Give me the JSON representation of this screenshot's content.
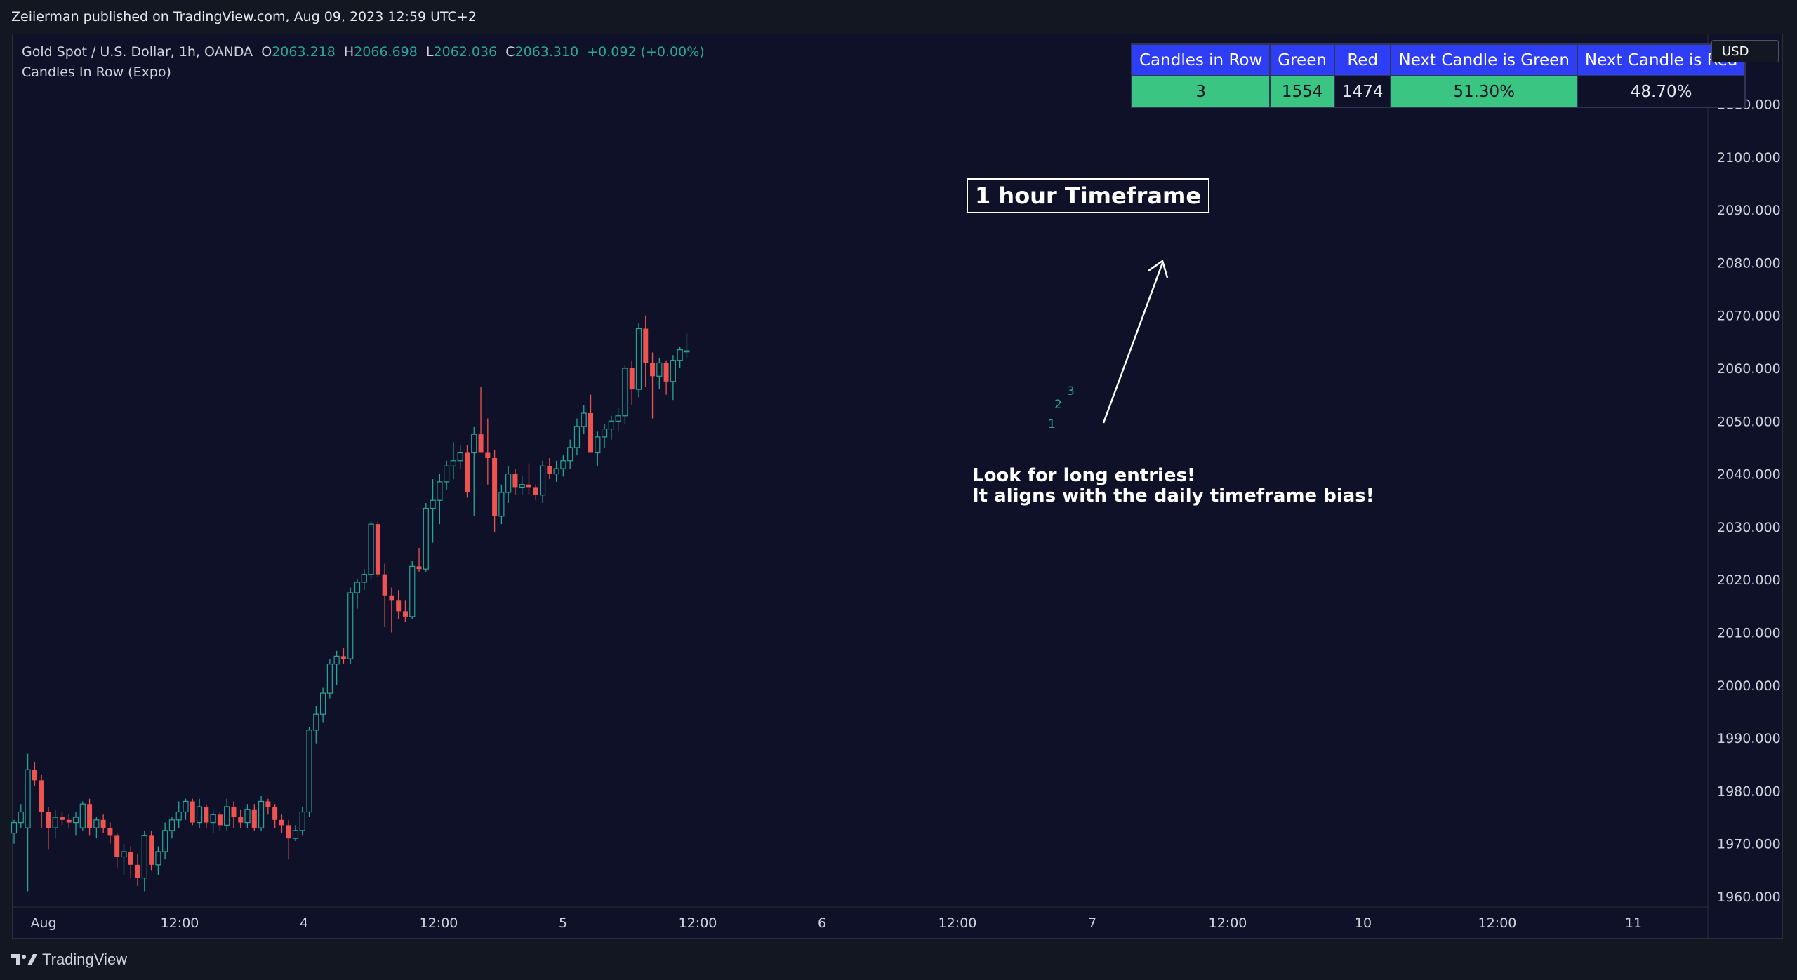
{
  "header": {
    "published": "Zeiierman published on TradingView.com, Aug 09, 2023 12:59 UTC+2"
  },
  "legend": {
    "symbol": "Gold Spot / U.S. Dollar, 1h, OANDA",
    "o_label": "O",
    "o_value": "2063.218",
    "h_label": "H",
    "h_value": "2066.698",
    "l_label": "L",
    "l_value": "2062.036",
    "c_label": "C",
    "c_value": "2063.310",
    "change": "+0.092 (+0.00%)",
    "indicator": "Candles In Row (Expo)"
  },
  "table": {
    "headers": [
      "Candles in Row",
      "Green",
      "Red",
      "Next Candle is Green",
      "Next Candle is Red"
    ],
    "values": [
      "3",
      "1554",
      "1474",
      "51.30%",
      "48.70%"
    ]
  },
  "annotations": {
    "timeframe_label": "1 hour Timeframe",
    "note_line1": "Look for long entries!",
    "note_line2": "It aligns with the daily timeframe bias!",
    "count_labels": [
      "1",
      "2",
      "3"
    ]
  },
  "price_axis": {
    "currency": "USD"
  },
  "footer": {
    "brand": "TradingView"
  },
  "colors": {
    "up": "#26a69a",
    "down": "#ef5350",
    "background": "#0f1129",
    "table_header": "#2e3ef6",
    "table_green": "#3ac583"
  },
  "chart_data": {
    "type": "candlestick",
    "symbol": "Gold Spot / U.S. Dollar",
    "interval": "1h",
    "ylim": [
      1956,
      2120
    ],
    "y_ticks": [
      "1960.000",
      "1970.000",
      "1980.000",
      "1990.000",
      "2000.000",
      "2010.000",
      "2020.000",
      "2030.000",
      "2040.000",
      "2050.000",
      "2060.000",
      "2070.000",
      "2080.000",
      "2090.000",
      "2100.000",
      "2110.000"
    ],
    "x_ticks": [
      "Aug",
      "12:00",
      "4",
      "12:00",
      "5",
      "12:00",
      "6",
      "12:00",
      "7",
      "12:00",
      "10",
      "12:00",
      "11"
    ],
    "candles": [
      [
        1972.0,
        1974.5,
        1970.0,
        1974.0
      ],
      [
        1974.0,
        1977.5,
        1973.0,
        1976.0
      ],
      [
        1973.0,
        1987.0,
        1961.0,
        1984.0
      ],
      [
        1984.0,
        1985.5,
        1981.0,
        1982.0
      ],
      [
        1982.0,
        1983.0,
        1973.0,
        1976.0
      ],
      [
        1976.0,
        1977.0,
        1969.0,
        1973.0
      ],
      [
        1973.0,
        1976.5,
        1971.0,
        1975.0
      ],
      [
        1975.0,
        1976.0,
        1973.5,
        1974.5
      ],
      [
        1974.5,
        1975.5,
        1973.0,
        1974.0
      ],
      [
        1974.0,
        1976.0,
        1971.5,
        1975.0
      ],
      [
        1973.0,
        1978.0,
        1972.5,
        1977.5
      ],
      [
        1977.5,
        1978.5,
        1971.5,
        1973.0
      ],
      [
        1973.0,
        1975.0,
        1971.0,
        1974.5
      ],
      [
        1974.5,
        1975.5,
        1972.0,
        1973.0
      ],
      [
        1973.0,
        1974.0,
        1970.0,
        1971.5
      ],
      [
        1971.5,
        1972.0,
        1965.5,
        1967.5
      ],
      [
        1967.5,
        1970.0,
        1964.0,
        1968.5
      ],
      [
        1968.5,
        1969.5,
        1963.5,
        1966.0
      ],
      [
        1966.0,
        1968.0,
        1962.0,
        1963.5
      ],
      [
        1963.5,
        1972.5,
        1961.0,
        1971.5
      ],
      [
        1971.5,
        1972.5,
        1965.0,
        1966.0
      ],
      [
        1966.0,
        1969.5,
        1964.0,
        1968.5
      ],
      [
        1968.5,
        1974.0,
        1967.0,
        1972.5
      ],
      [
        1972.5,
        1975.0,
        1971.0,
        1974.5
      ],
      [
        1974.5,
        1978.0,
        1973.0,
        1976.0
      ],
      [
        1976.0,
        1978.5,
        1974.5,
        1978.0
      ],
      [
        1978.0,
        1978.5,
        1973.5,
        1974.0
      ],
      [
        1974.0,
        1978.5,
        1973.0,
        1977.0
      ],
      [
        1977.0,
        1977.5,
        1973.0,
        1974.0
      ],
      [
        1974.0,
        1976.5,
        1972.0,
        1975.5
      ],
      [
        1975.5,
        1976.0,
        1972.5,
        1973.5
      ],
      [
        1973.5,
        1978.5,
        1972.5,
        1977.0
      ],
      [
        1977.0,
        1978.0,
        1973.0,
        1975.0
      ],
      [
        1975.0,
        1976.5,
        1973.0,
        1974.0
      ],
      [
        1974.0,
        1977.5,
        1973.0,
        1976.5
      ],
      [
        1976.5,
        1977.5,
        1972.5,
        1973.0
      ],
      [
        1973.0,
        1979.0,
        1972.5,
        1978.0
      ],
      [
        1978.0,
        1978.5,
        1975.5,
        1977.0
      ],
      [
        1977.0,
        1977.5,
        1973.0,
        1974.5
      ],
      [
        1974.5,
        1975.5,
        1972.0,
        1973.5
      ],
      [
        1973.5,
        1974.5,
        1967.0,
        1971.0
      ],
      [
        1971.0,
        1973.5,
        1970.5,
        1972.5
      ],
      [
        1972.5,
        1977.0,
        1971.5,
        1976.0
      ],
      [
        1976.0,
        1992.0,
        1975.0,
        1991.5
      ],
      [
        1991.5,
        1996.0,
        1989.0,
        1994.5
      ],
      [
        1994.5,
        1999.5,
        1993.0,
        1998.5
      ],
      [
        1998.5,
        2005.0,
        1997.5,
        2004.0
      ],
      [
        2004.0,
        2006.5,
        2000.0,
        2005.5
      ],
      [
        2005.5,
        2007.0,
        2004.0,
        2005.0
      ],
      [
        2005.0,
        2018.5,
        2004.0,
        2017.5
      ],
      [
        2017.5,
        2020.0,
        2014.5,
        2019.5
      ],
      [
        2019.5,
        2022.0,
        2018.0,
        2021.0
      ],
      [
        2021.0,
        2031.0,
        2020.0,
        2030.5
      ],
      [
        2030.5,
        2031.0,
        2020.5,
        2021.0
      ],
      [
        2021.0,
        2023.0,
        2011.0,
        2017.0
      ],
      [
        2017.0,
        2018.5,
        2010.0,
        2016.0
      ],
      [
        2016.0,
        2018.0,
        2012.5,
        2014.0
      ],
      [
        2014.0,
        2016.0,
        2012.0,
        2013.0
      ],
      [
        2013.0,
        2023.5,
        2012.5,
        2022.5
      ],
      [
        2022.5,
        2026.0,
        2021.5,
        2022.0
      ],
      [
        2022.0,
        2034.5,
        2021.5,
        2033.5
      ],
      [
        2033.5,
        2039.0,
        2027.0,
        2035.0
      ],
      [
        2035.0,
        2040.0,
        2030.5,
        2038.5
      ],
      [
        2038.5,
        2042.5,
        2037.0,
        2041.5
      ],
      [
        2041.5,
        2046.0,
        2039.0,
        2042.5
      ],
      [
        2042.5,
        2045.5,
        2041.0,
        2044.0
      ],
      [
        2044.0,
        2045.5,
        2035.5,
        2036.5
      ],
      [
        2044.0,
        2049.0,
        2032.0,
        2047.5
      ],
      [
        2047.5,
        2056.5,
        2045.0,
        2044.0
      ],
      [
        2044.0,
        2050.5,
        2038.0,
        2043.0
      ],
      [
        2043.0,
        2044.5,
        2029.0,
        2032.0
      ],
      [
        2032.0,
        2038.0,
        2030.5,
        2036.5
      ],
      [
        2036.5,
        2041.5,
        2034.5,
        2040.0
      ],
      [
        2040.0,
        2041.0,
        2036.0,
        2037.5
      ],
      [
        2037.5,
        2039.5,
        2036.0,
        2038.0
      ],
      [
        2038.0,
        2042.0,
        2036.0,
        2037.5
      ],
      [
        2037.5,
        2038.0,
        2035.0,
        2036.0
      ],
      [
        2036.0,
        2042.5,
        2034.5,
        2041.5
      ],
      [
        2041.5,
        2043.0,
        2039.0,
        2040.0
      ],
      [
        2040.0,
        2042.5,
        2038.5,
        2041.0
      ],
      [
        2041.0,
        2043.5,
        2039.5,
        2042.5
      ],
      [
        2042.5,
        2046.5,
        2041.0,
        2045.0
      ],
      [
        2045.0,
        2050.5,
        2043.5,
        2049.0
      ],
      [
        2049.0,
        2053.0,
        2047.5,
        2051.5
      ],
      [
        2051.5,
        2055.0,
        2045.0,
        2044.0
      ],
      [
        2044.0,
        2048.0,
        2041.5,
        2047.0
      ],
      [
        2047.0,
        2049.5,
        2045.0,
        2048.5
      ],
      [
        2048.5,
        2051.0,
        2046.5,
        2050.0
      ],
      [
        2050.0,
        2052.5,
        2048.0,
        2051.0
      ],
      [
        2051.0,
        2060.5,
        2049.5,
        2060.0
      ],
      [
        2060.0,
        2061.5,
        2053.0,
        2056.0
      ],
      [
        2056.0,
        2068.5,
        2054.5,
        2067.5
      ],
      [
        2067.5,
        2070.0,
        2056.5,
        2061.0
      ],
      [
        2061.0,
        2063.0,
        2050.5,
        2058.5
      ],
      [
        2058.5,
        2062.0,
        2056.0,
        2061.0
      ],
      [
        2061.0,
        2061.5,
        2055.0,
        2057.5
      ],
      [
        2057.5,
        2062.5,
        2054.0,
        2061.5
      ],
      [
        2061.5,
        2064.0,
        2060.0,
        2063.5
      ],
      [
        2063.2,
        2066.7,
        2062.0,
        2063.3
      ]
    ]
  }
}
